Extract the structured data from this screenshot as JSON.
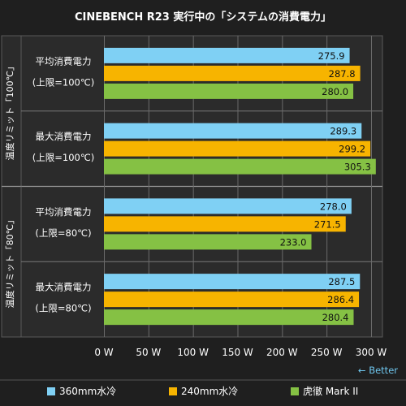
{
  "chart_data": {
    "type": "bar",
    "orientation": "horizontal",
    "title": "CINEBENCH R23 実行中の「システムの消費電力」",
    "groups": [
      {
        "label": "温度リミット「100℃」",
        "categories": [
          {
            "line1": "平均消費電力",
            "line2": "(上限=100℃)",
            "values": [
              275.9,
              287.8,
              280.0
            ]
          },
          {
            "line1": "最大消費電力",
            "line2": "(上限=100℃)",
            "values": [
              289.3,
              299.2,
              305.3
            ]
          }
        ]
      },
      {
        "label": "温度リミット「80℃」",
        "categories": [
          {
            "line1": "平均消費電力",
            "line2": "(上限=80℃)",
            "values": [
              278.0,
              271.5,
              233.0
            ]
          },
          {
            "line1": "最大消費電力",
            "line2": "(上限=80℃)",
            "values": [
              287.5,
              286.4,
              280.4
            ]
          }
        ]
      }
    ],
    "series": [
      {
        "name": "360mm水冷",
        "color": "#7fd0f4"
      },
      {
        "name": "240mm水冷",
        "color": "#f7b400"
      },
      {
        "name": "虎徹 Mark II",
        "color": "#85c144"
      }
    ],
    "x_ticks": [
      "0 W",
      "50 W",
      "100 W",
      "150 W",
      "200 W",
      "250 W",
      "300 W"
    ],
    "xlim": [
      0,
      300
    ],
    "grid": true,
    "legend_position": "bottom",
    "better_label": "← Better"
  }
}
